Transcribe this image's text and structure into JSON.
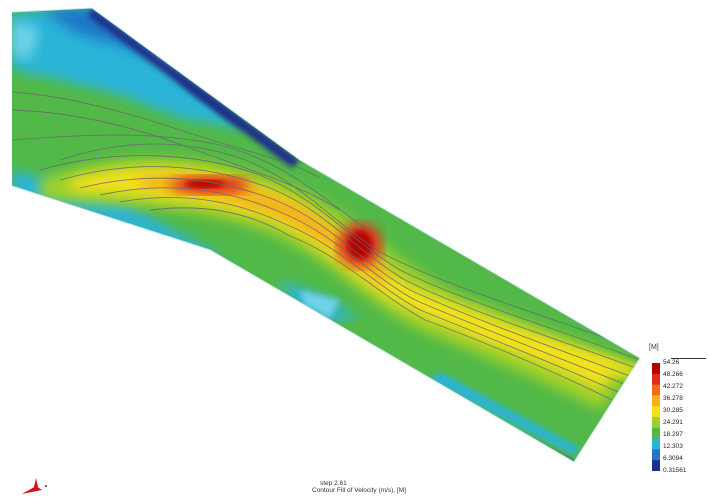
{
  "figure": {
    "legend": {
      "unit": "[M]",
      "labels": [
        "54.26",
        "48.266",
        "42.272",
        "36.278",
        "30.285",
        "24.291",
        "18.297",
        "12.303",
        "6.3094",
        "0.31561"
      ],
      "colors": [
        "#b40000",
        "#e22b1c",
        "#f26a1a",
        "#f4b21c",
        "#f2e11c",
        "#9fd02b",
        "#52b948",
        "#29b4d8",
        "#1f77c6",
        "#1f2e8a"
      ]
    },
    "caption": {
      "line1": "step 2.61",
      "line2": "Contour Fill of Velocity (m/s), [M]"
    },
    "palette": {
      "deep": "#1f2e8a",
      "blue": "#1f77c6",
      "cyan": "#29b4d8",
      "lightcyan": "#6fd2e6",
      "green": "#52b948",
      "yellowgreen": "#9fd02b",
      "yellow": "#f2e11c",
      "orange": "#f4b21c",
      "red": "#e22b1c",
      "darkred": "#b40000",
      "streamline": "#6a6a6a"
    },
    "axis_icon": "axis-triad-icon"
  }
}
